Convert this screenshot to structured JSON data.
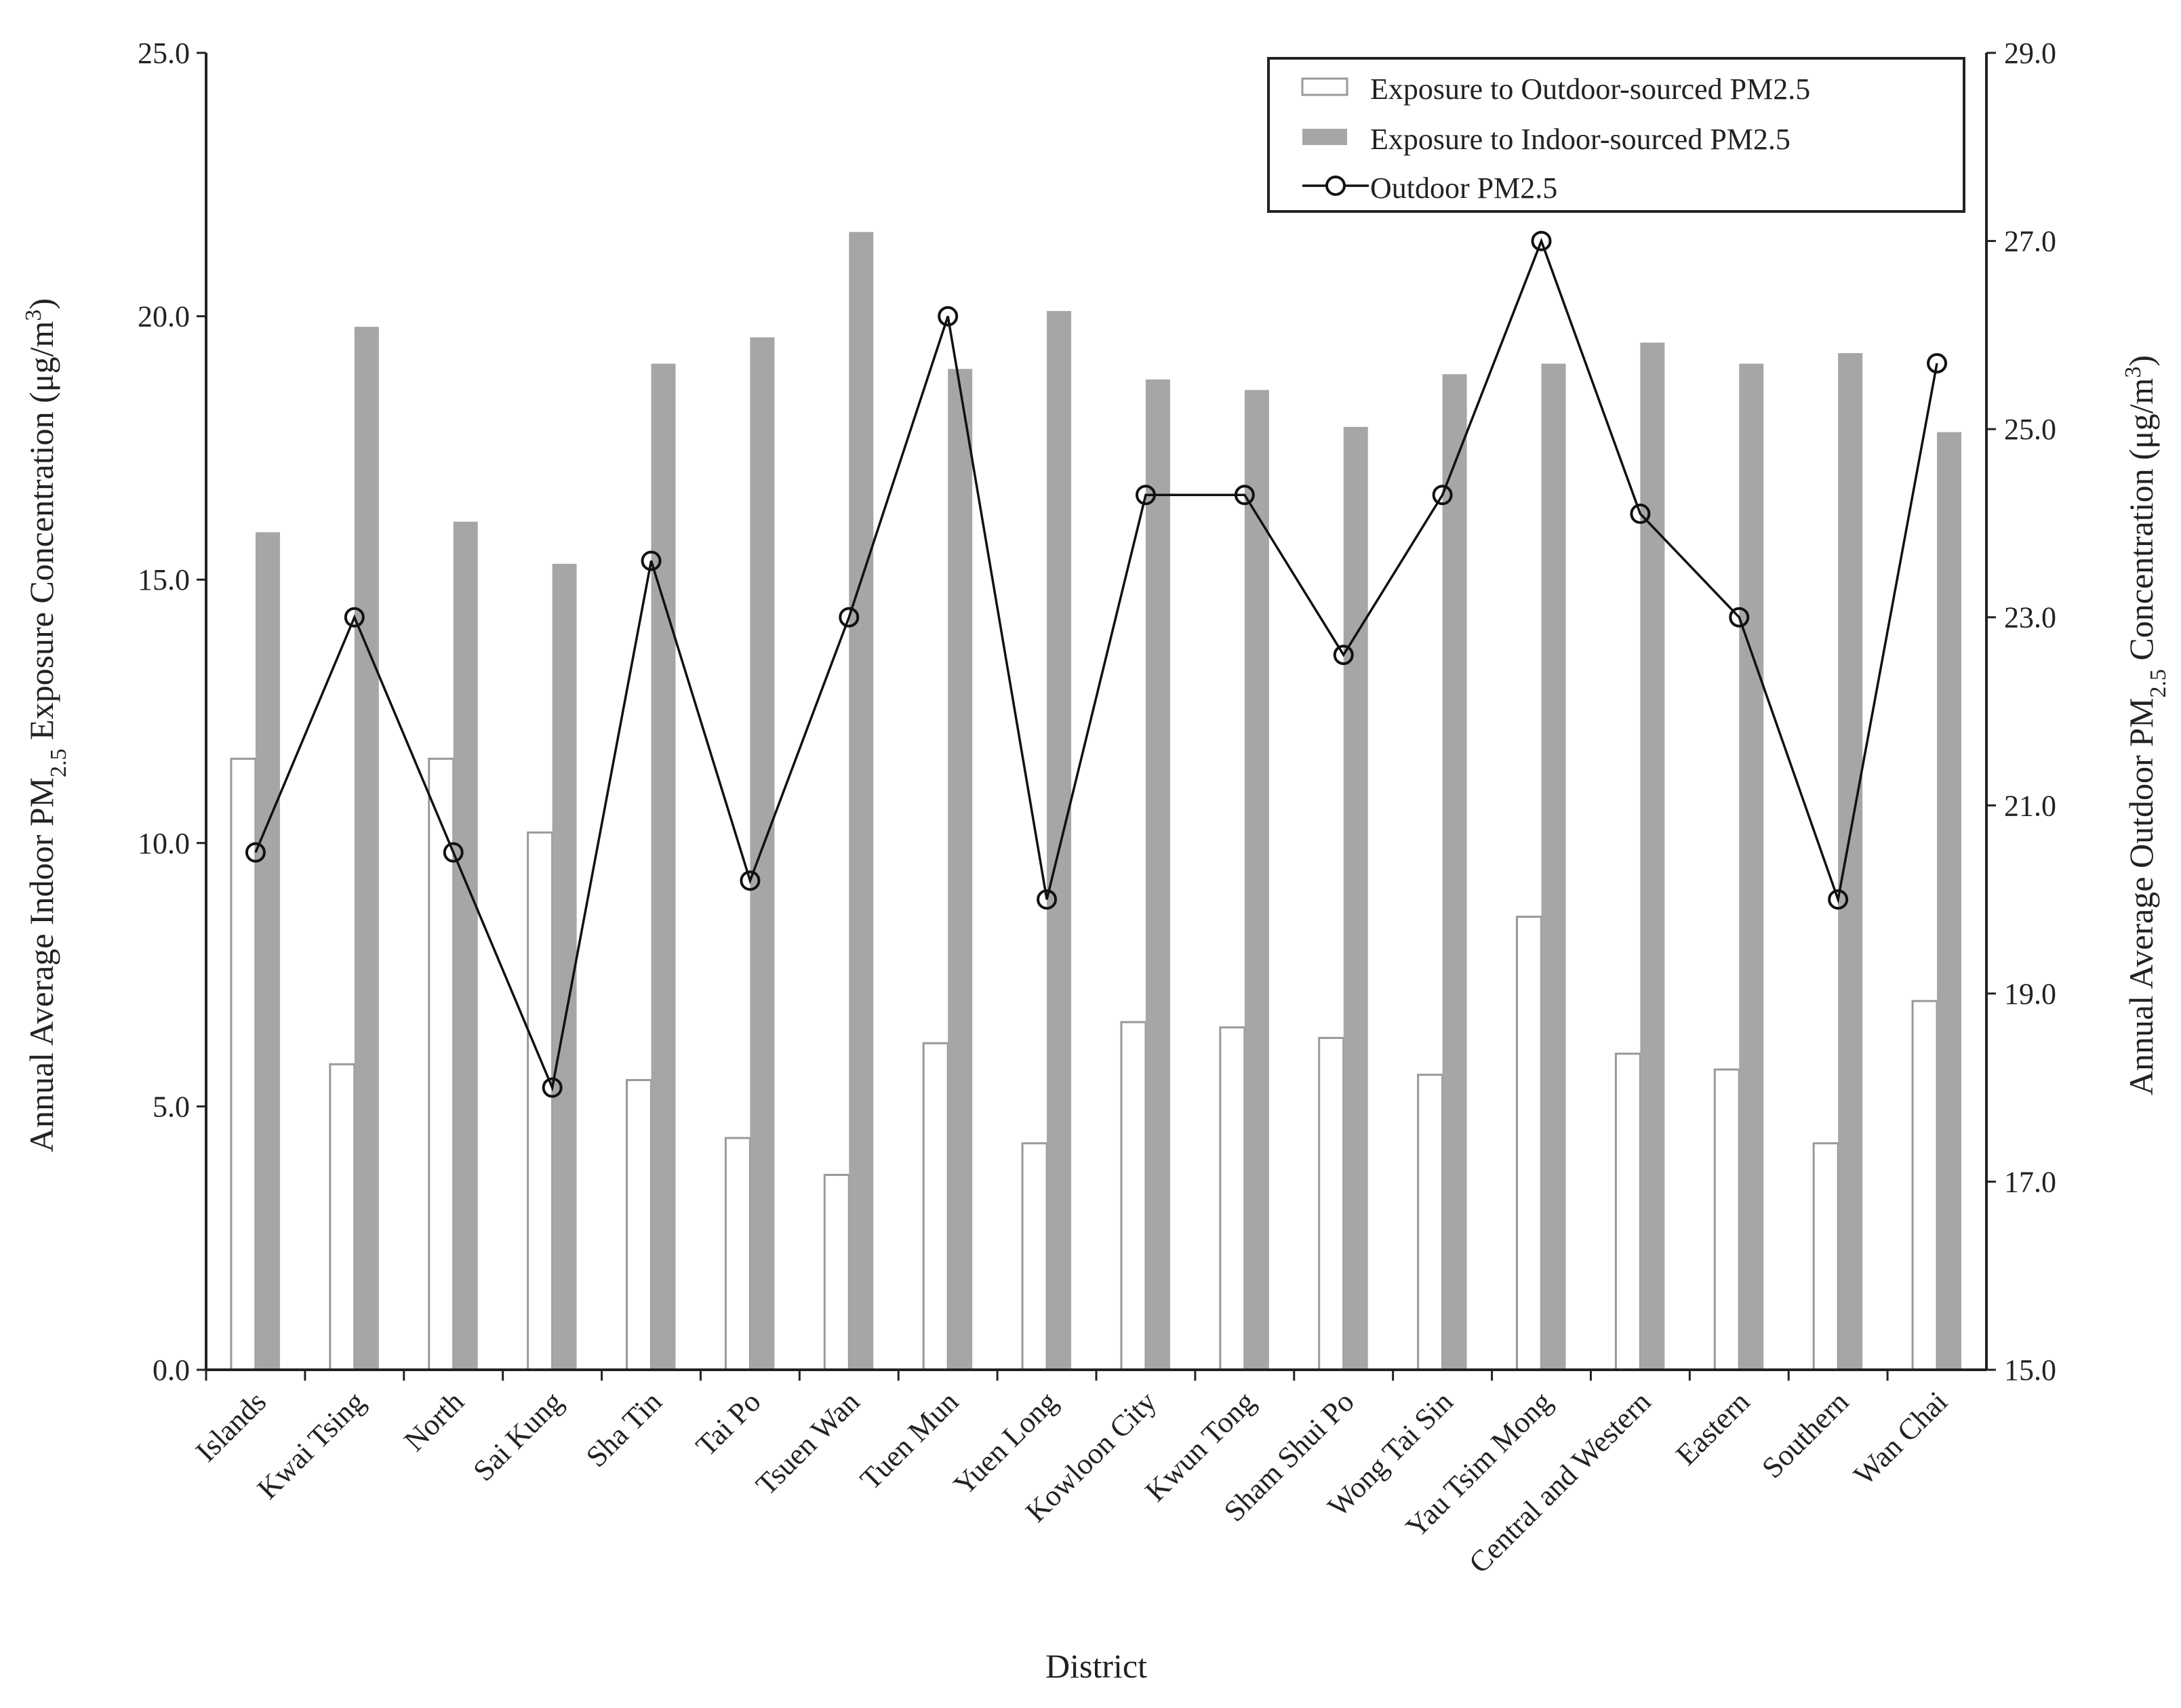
{
  "chart_data": {
    "type": "bar",
    "xlabel": "District",
    "ylabel_parts": [
      "Annual Average Indoor PM",
      "2.5",
      " Exposure Concentration (μg/m",
      "3",
      ")"
    ],
    "y2label_parts": [
      "Annual Average Outdoor PM",
      "2.5",
      " Concentration (μg/m",
      "3",
      ")"
    ],
    "ylim": [
      0,
      25
    ],
    "y2lim": [
      15,
      29
    ],
    "yticks": [
      "0.0",
      "5.0",
      "10.0",
      "15.0",
      "20.0",
      "25.0"
    ],
    "y2ticks": [
      "15.0",
      "17.0",
      "19.0",
      "21.0",
      "23.0",
      "25.0",
      "27.0",
      "29.0"
    ],
    "grid": false,
    "legend_placement": "top-right",
    "categories": [
      "Islands",
      "Kwai Tsing",
      "North",
      "Sai Kung",
      "Sha Tin",
      "Tai Po",
      "Tsuen Wan",
      "Tuen Mun",
      "Yuen Long",
      "Kowloon City",
      "Kwun Tong",
      "Sham Shui Po",
      "Wong Tai Sin",
      "Yau Tsim Mong",
      "Central and Western",
      "Eastern",
      "Southern",
      "Wan Chai"
    ],
    "series": [
      {
        "name": "Exposure to Outdoor-sourced PM2.5",
        "type": "bar",
        "axis": "left",
        "color": "#ffffff",
        "stroke": "#999999",
        "values": [
          11.6,
          5.8,
          11.6,
          10.2,
          5.5,
          4.4,
          3.7,
          6.2,
          4.3,
          6.6,
          6.5,
          6.3,
          5.6,
          8.6,
          6.0,
          5.7,
          4.3,
          7.0
        ]
      },
      {
        "name": "Exposure to Indoor-sourced PM2.5",
        "type": "bar",
        "axis": "left",
        "color": "#a6a6a6",
        "values": [
          15.9,
          19.8,
          16.1,
          15.3,
          19.1,
          19.6,
          21.6,
          19.0,
          20.1,
          18.8,
          18.6,
          17.9,
          18.9,
          19.1,
          19.5,
          19.1,
          19.3,
          17.8
        ]
      },
      {
        "name": "Outdoor PM2.5",
        "type": "line",
        "axis": "right",
        "color": "#111111",
        "marker": "open-circle",
        "values": [
          20.5,
          23.0,
          20.5,
          18.0,
          23.6,
          20.2,
          23.0,
          26.2,
          20.0,
          24.3,
          24.3,
          22.6,
          24.3,
          27.0,
          24.1,
          23.0,
          20.0,
          25.7
        ]
      }
    ]
  }
}
